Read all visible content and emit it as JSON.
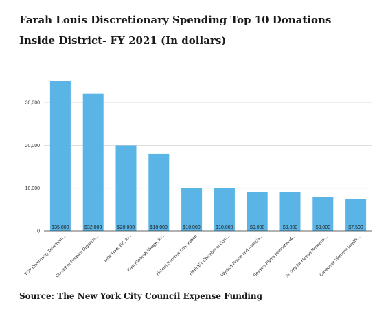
{
  "title": "Farah Louis Discretionary Spending Top 10 Donations Inside District- FY 2021 (In dollars)",
  "source": "Source: The New York City Council Expense Funding",
  "chart_data": {
    "type": "bar",
    "categories": [
      "TOP Community Developm...",
      "Council of Peoples Organiza...",
      "Little Haiti, BK, Inc.",
      "East Flatbush Village, Inc.",
      "Habnet Services Corporation",
      "HABNET Chamber of Com...",
      "Wyckoff House and Associa...",
      "Sesame Flyers International...",
      "Society for Haitian Research...",
      "Caribbean Womens Health ..."
    ],
    "values": [
      35000,
      32000,
      20000,
      18000,
      10000,
      10000,
      9000,
      9000,
      8000,
      7500
    ],
    "data_labels": [
      "$35,000",
      "$32,000",
      "$20,000",
      "$18,000",
      "$10,000",
      "$10,000",
      "$9,000",
      "$9,000",
      "$8,000",
      "$7,500"
    ],
    "yticks": [
      0,
      10000,
      20000,
      30000
    ],
    "ytick_labels": [
      "0",
      "10,000",
      "20,000",
      "30,000"
    ],
    "ylim": [
      0,
      35000
    ],
    "bar_color": "#5ab4e5",
    "grid": true,
    "legend": "none"
  }
}
